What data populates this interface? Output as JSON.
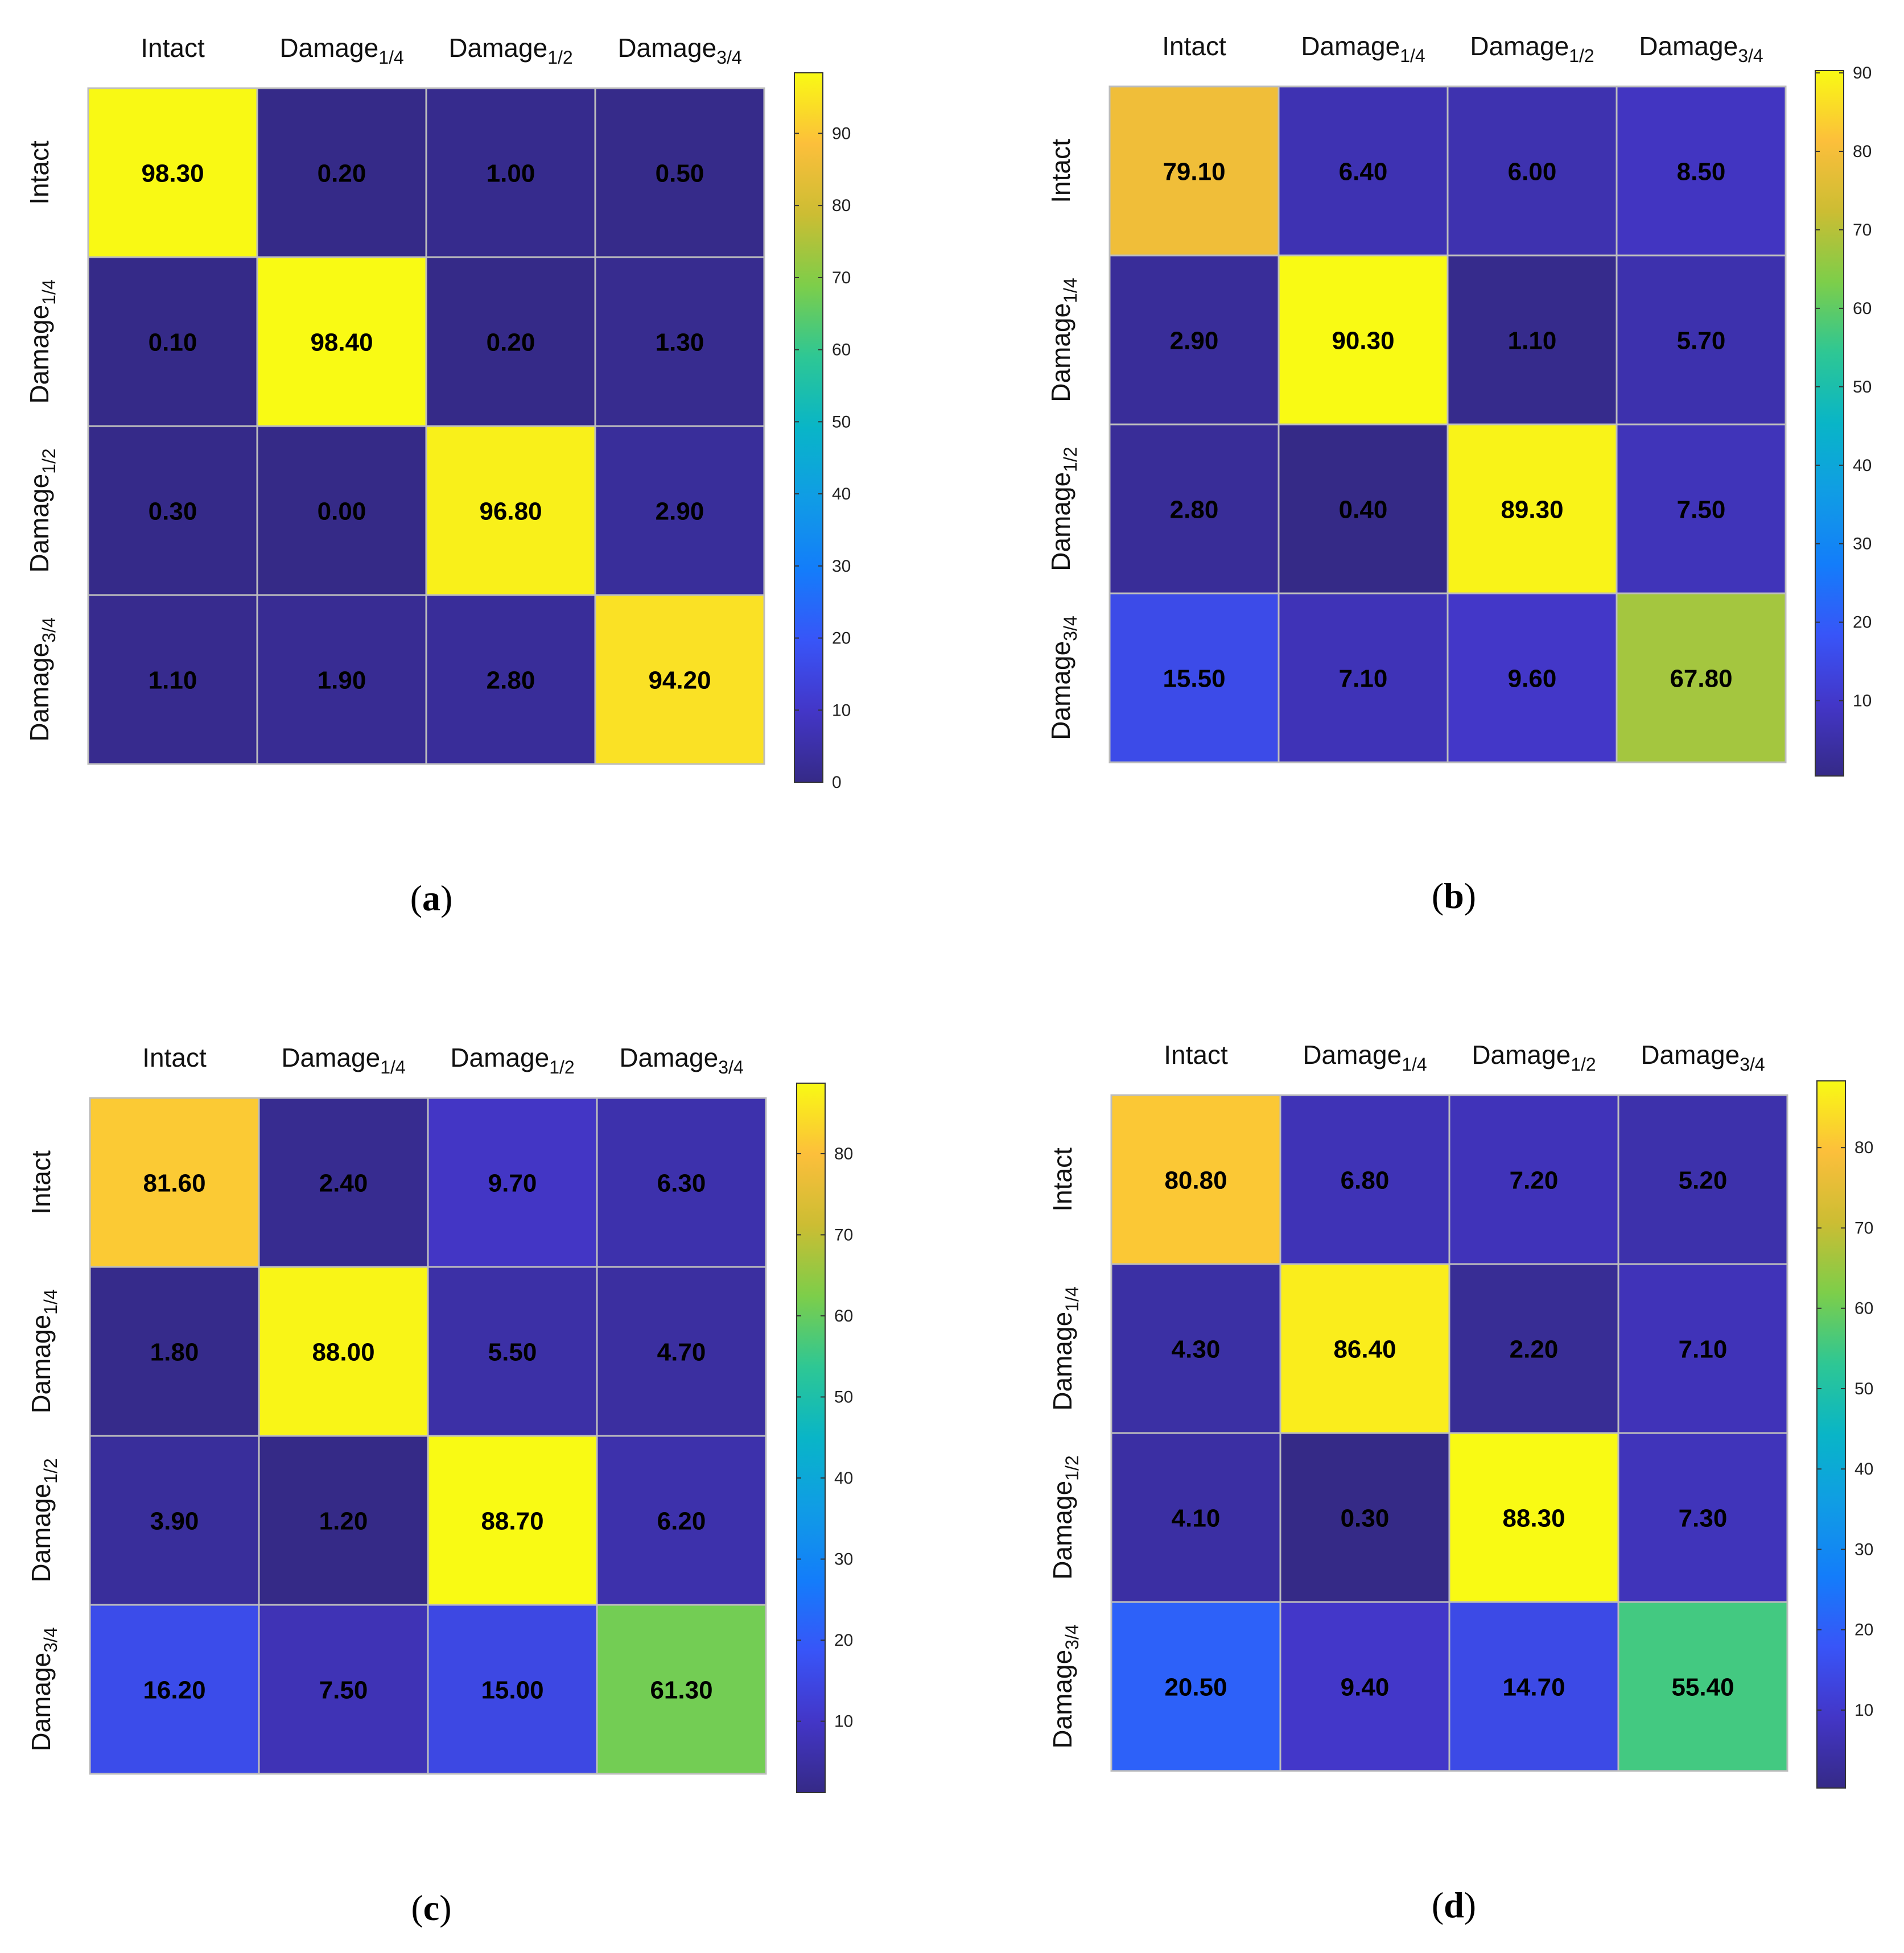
{
  "chart_data": [
    {
      "type": "heatmap",
      "panel": "a",
      "caption": "(a)",
      "categories": [
        "Intact",
        "Damage1/4",
        "Damage1/2",
        "Damage3/4"
      ],
      "x_labels": [
        {
          "base": "Intact",
          "sub": ""
        },
        {
          "base": "Damage",
          "sub": "1/4"
        },
        {
          "base": "Damage",
          "sub": "1/2"
        },
        {
          "base": "Damage",
          "sub": "3/4"
        }
      ],
      "y_labels": [
        {
          "base": "Intact",
          "sub": ""
        },
        {
          "base": "Damage",
          "sub": "1/4"
        },
        {
          "base": "Damage",
          "sub": "1/2"
        },
        {
          "base": "Damage",
          "sub": "3/4"
        }
      ],
      "values": [
        [
          98.3,
          0.2,
          1.0,
          0.5
        ],
        [
          0.1,
          98.4,
          0.2,
          1.3
        ],
        [
          0.3,
          0.0,
          96.8,
          2.9
        ],
        [
          1.1,
          1.9,
          2.8,
          94.2
        ]
      ],
      "value_labels": [
        [
          "98.30",
          "0.20",
          "1.00",
          "0.50"
        ],
        [
          "0.10",
          "98.40",
          "0.20",
          "1.30"
        ],
        [
          "0.30",
          "0.00",
          "96.80",
          "2.90"
        ],
        [
          "1.10",
          "1.90",
          "2.80",
          "94.20"
        ]
      ],
      "colorbar": {
        "min": 0,
        "max": 98.4,
        "ticks": [
          0,
          10,
          20,
          30,
          40,
          50,
          60,
          70,
          80,
          90
        ]
      }
    },
    {
      "type": "heatmap",
      "panel": "b",
      "caption": "(b)",
      "categories": [
        "Intact",
        "Damage1/4",
        "Damage1/2",
        "Damage3/4"
      ],
      "x_labels": [
        {
          "base": "Intact",
          "sub": ""
        },
        {
          "base": "Damage",
          "sub": "1/4"
        },
        {
          "base": "Damage",
          "sub": "1/2"
        },
        {
          "base": "Damage",
          "sub": "3/4"
        }
      ],
      "y_labels": [
        {
          "base": "Intact",
          "sub": ""
        },
        {
          "base": "Damage",
          "sub": "1/4"
        },
        {
          "base": "Damage",
          "sub": "1/2"
        },
        {
          "base": "Damage",
          "sub": "3/4"
        }
      ],
      "values": [
        [
          79.1,
          6.4,
          6.0,
          8.5
        ],
        [
          2.9,
          90.3,
          1.1,
          5.7
        ],
        [
          2.8,
          0.4,
          89.3,
          7.5
        ],
        [
          15.5,
          7.1,
          9.6,
          67.8
        ]
      ],
      "value_labels": [
        [
          "79.10",
          "6.40",
          "6.00",
          "8.50"
        ],
        [
          "2.90",
          "90.30",
          "1.10",
          "5.70"
        ],
        [
          "2.80",
          "0.40",
          "89.30",
          "7.50"
        ],
        [
          "15.50",
          "7.10",
          "9.60",
          "67.80"
        ]
      ],
      "colorbar": {
        "min": 0.4,
        "max": 90.3,
        "ticks": [
          10,
          20,
          30,
          40,
          50,
          60,
          70,
          80,
          90
        ]
      }
    },
    {
      "type": "heatmap",
      "panel": "c",
      "caption": "(c)",
      "categories": [
        "Intact",
        "Damage1/4",
        "Damage1/2",
        "Damage3/4"
      ],
      "x_labels": [
        {
          "base": "Intact",
          "sub": ""
        },
        {
          "base": "Damage",
          "sub": "1/4"
        },
        {
          "base": "Damage",
          "sub": "1/2"
        },
        {
          "base": "Damage",
          "sub": "3/4"
        }
      ],
      "y_labels": [
        {
          "base": "Intact",
          "sub": ""
        },
        {
          "base": "Damage",
          "sub": "1/4"
        },
        {
          "base": "Damage",
          "sub": "1/2"
        },
        {
          "base": "Damage",
          "sub": "3/4"
        }
      ],
      "values": [
        [
          81.6,
          2.4,
          9.7,
          6.3
        ],
        [
          1.8,
          88.0,
          5.5,
          4.7
        ],
        [
          3.9,
          1.2,
          88.7,
          6.2
        ],
        [
          16.2,
          7.5,
          15.0,
          61.3
        ]
      ],
      "value_labels": [
        [
          "81.60",
          "2.40",
          "9.70",
          "6.30"
        ],
        [
          "1.80",
          "88.00",
          "5.50",
          "4.70"
        ],
        [
          "3.90",
          "1.20",
          "88.70",
          "6.20"
        ],
        [
          "16.20",
          "7.50",
          "15.00",
          "61.30"
        ]
      ],
      "colorbar": {
        "min": 1.2,
        "max": 88.7,
        "ticks": [
          10,
          20,
          30,
          40,
          50,
          60,
          70,
          80
        ]
      }
    },
    {
      "type": "heatmap",
      "panel": "d",
      "caption": "(d)",
      "categories": [
        "Intact",
        "Damage1/4",
        "Damage1/2",
        "Damage3/4"
      ],
      "x_labels": [
        {
          "base": "Intact",
          "sub": ""
        },
        {
          "base": "Damage",
          "sub": "1/4"
        },
        {
          "base": "Damage",
          "sub": "1/2"
        },
        {
          "base": "Damage",
          "sub": "3/4"
        }
      ],
      "y_labels": [
        {
          "base": "Intact",
          "sub": ""
        },
        {
          "base": "Damage",
          "sub": "1/4"
        },
        {
          "base": "Damage",
          "sub": "1/2"
        },
        {
          "base": "Damage",
          "sub": "3/4"
        }
      ],
      "values": [
        [
          80.8,
          6.8,
          7.2,
          5.2
        ],
        [
          4.3,
          86.4,
          2.2,
          7.1
        ],
        [
          4.1,
          0.3,
          88.3,
          7.3
        ],
        [
          20.5,
          9.4,
          14.7,
          55.4
        ]
      ],
      "value_labels": [
        [
          "80.80",
          "6.80",
          "7.20",
          "5.20"
        ],
        [
          "4.30",
          "86.40",
          "2.20",
          "7.10"
        ],
        [
          "4.10",
          "0.30",
          "88.30",
          "7.30"
        ],
        [
          "20.50",
          "9.40",
          "14.70",
          "55.40"
        ]
      ],
      "colorbar": {
        "min": 0.3,
        "max": 88.3,
        "ticks": [
          10,
          20,
          30,
          40,
          50,
          60,
          70,
          80
        ]
      }
    }
  ]
}
